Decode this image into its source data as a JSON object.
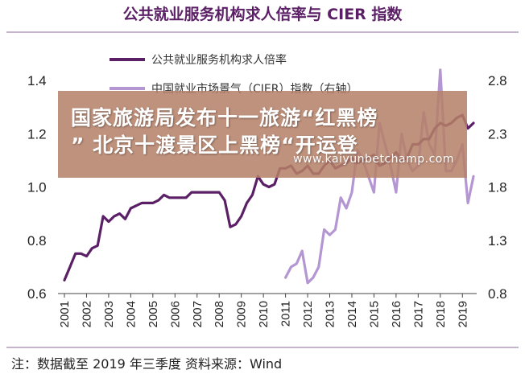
{
  "chart_data": {
    "type": "line",
    "title": "公共就业服务机构求人倍率与 CIER 指数",
    "note": "注：数据截至 2019 年三季度 资料来源：Wind",
    "x_ticks": [
      "2001",
      "2002",
      "2003",
      "2004",
      "2005",
      "2006",
      "2007",
      "2008",
      "2009",
      "2010",
      "2011",
      "2012",
      "2013",
      "2014",
      "2015",
      "2016",
      "2017",
      "2018",
      "2019"
    ],
    "y_left": {
      "ticks": [
        "0.6",
        "0.8",
        "1.0",
        "1.2",
        "1.4"
      ],
      "range": [
        0.6,
        1.4
      ]
    },
    "y_right": {
      "ticks": [
        "0.8",
        "1.3",
        "1.8",
        "2.3",
        "2.8"
      ],
      "range": [
        0.8,
        2.8
      ]
    },
    "legend_position": "top",
    "series": [
      {
        "name": "公共就业服务机构求人倍率",
        "axis": "left",
        "color": "#5b1f66",
        "x": [
          2001.0,
          2001.25,
          2001.5,
          2001.75,
          2002.0,
          2002.25,
          2002.5,
          2002.75,
          2003.0,
          2003.25,
          2003.5,
          2003.75,
          2004.0,
          2004.25,
          2004.5,
          2004.75,
          2005.0,
          2005.25,
          2005.5,
          2005.75,
          2006.0,
          2006.25,
          2006.5,
          2006.75,
          2007.0,
          2007.25,
          2007.5,
          2007.75,
          2008.0,
          2008.25,
          2008.5,
          2008.75,
          2009.0,
          2009.25,
          2009.5,
          2009.75,
          2010.0,
          2010.25,
          2010.5,
          2010.75,
          2011.0,
          2011.25,
          2011.5,
          2011.75,
          2012.0,
          2012.25,
          2012.5,
          2012.75,
          2013.0,
          2013.25,
          2013.5,
          2013.75,
          2014.0,
          2014.25,
          2014.5,
          2014.75,
          2015.0,
          2015.25,
          2015.5,
          2015.75,
          2016.0,
          2016.25,
          2016.5,
          2016.75,
          2017.0,
          2017.25,
          2017.5,
          2017.75,
          2018.0,
          2018.25,
          2018.5,
          2018.75,
          2019.0,
          2019.25,
          2019.5
        ],
        "values": [
          0.65,
          0.7,
          0.75,
          0.75,
          0.74,
          0.77,
          0.78,
          0.89,
          0.87,
          0.89,
          0.9,
          0.88,
          0.92,
          0.93,
          0.94,
          0.94,
          0.94,
          0.95,
          0.97,
          0.96,
          0.96,
          0.96,
          0.96,
          0.98,
          0.98,
          0.98,
          0.98,
          0.98,
          0.98,
          0.95,
          0.85,
          0.86,
          0.89,
          0.94,
          0.97,
          1.04,
          1.01,
          1.0,
          1.01,
          1.07,
          1.07,
          1.08,
          1.05,
          1.06,
          1.08,
          1.05,
          1.05,
          1.08,
          1.1,
          1.07,
          1.08,
          1.09,
          1.11,
          1.09,
          1.1,
          1.11,
          1.12,
          1.08,
          1.09,
          1.11,
          1.13,
          1.1,
          1.11,
          1.16,
          1.16,
          1.18,
          1.18,
          1.22,
          1.24,
          1.23,
          1.24,
          1.26,
          1.27,
          1.22,
          1.24
        ]
      },
      {
        "name": "中国就业市场景气（CIER）指数（右轴）",
        "axis": "right",
        "color": "#b496d2",
        "x": [
          2011.0,
          2011.25,
          2011.5,
          2011.75,
          2012.0,
          2012.25,
          2012.5,
          2012.75,
          2013.0,
          2013.25,
          2013.5,
          2013.75,
          2014.0,
          2014.25,
          2014.5,
          2014.75,
          2015.0,
          2015.25,
          2015.5,
          2015.75,
          2016.0,
          2016.25,
          2016.5,
          2016.75,
          2017.0,
          2017.25,
          2017.5,
          2017.75,
          2018.0,
          2018.25,
          2018.5,
          2018.75,
          2019.0,
          2019.25,
          2019.5
        ],
        "values": [
          0.95,
          1.05,
          1.08,
          1.2,
          0.9,
          0.95,
          1.05,
          1.4,
          1.35,
          1.4,
          1.7,
          1.6,
          1.75,
          2.15,
          2.05,
          1.9,
          1.75,
          2.4,
          2.2,
          2.0,
          1.75,
          2.3,
          2.05,
          1.95,
          2.0,
          2.5,
          2.2,
          2.1,
          2.9,
          1.95,
          1.95,
          2.05,
          2.2,
          1.65,
          1.9
        ]
      }
    ]
  },
  "overlay": {
    "line1": "国家旅游局发布十一旅游“红黑榜",
    "line2": "” 北京十渡景区上黑榜“开运登",
    "url": "www.kaiyunbetchamp.com"
  }
}
